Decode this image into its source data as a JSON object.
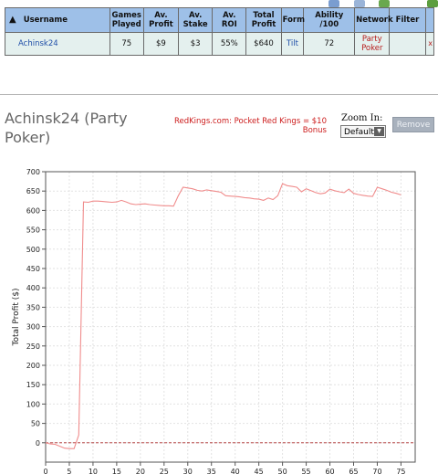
{
  "table": {
    "headers": [
      "Username",
      "Games Played",
      "Av. Profit",
      "Av. Stake",
      "Av. ROI",
      "Total Profit",
      "Form",
      "Ability /100",
      "Network",
      "Filter"
    ],
    "row": {
      "username": "Achinsk24",
      "games_played": "75",
      "av_profit": "$9",
      "av_stake": "$3",
      "av_roi": "55%",
      "total_profit": "$640",
      "form": "Tilt",
      "ability": "72",
      "network": "Party Poker",
      "remove": "x"
    }
  },
  "player": {
    "title": "Achinsk24 (Party Poker)"
  },
  "ad": {
    "text": "RedKings.com: Pocket Red Kings = $10 Bonus"
  },
  "zoom": {
    "label": "Zoom In:",
    "selected": "Default"
  },
  "remove_button": {
    "label": "Remove"
  },
  "icons": {
    "toolbar": [
      "print-icon",
      "save-icon",
      "refresh-icon",
      "expand-icon"
    ],
    "sort": "arrow-up-icon",
    "dropdown": "chevron-down-icon"
  },
  "colors": {
    "line": "#f08c8c",
    "header_bg": "#9ec0e8",
    "row_bg": "#e4f0ee",
    "accent_red": "#cc1b1b"
  },
  "chart_data": {
    "type": "line",
    "ylabel": "Total Profit ($)",
    "xlabel": "",
    "ylim": [
      -50,
      700
    ],
    "xlim": [
      0,
      78
    ],
    "yticks": [
      0,
      50,
      100,
      150,
      200,
      250,
      300,
      350,
      400,
      450,
      500,
      550,
      600,
      650,
      700
    ],
    "xticks": [
      0,
      5,
      10,
      15,
      20,
      25,
      30,
      35,
      40,
      45,
      50,
      55,
      60,
      65,
      70,
      75
    ],
    "grid": true,
    "zero_line": true,
    "series": [
      {
        "x": [
          0,
          1,
          2,
          3,
          4,
          5,
          6,
          7,
          8,
          9,
          10,
          11,
          12,
          13,
          14,
          15,
          16,
          17,
          18,
          19,
          20,
          21,
          22,
          23,
          24,
          25,
          26,
          27,
          28,
          29,
          30,
          31,
          32,
          33,
          34,
          35,
          36,
          37,
          38,
          39,
          40,
          41,
          42,
          43,
          44,
          45,
          46,
          47,
          48,
          49,
          50,
          51,
          52,
          53,
          54,
          55,
          56,
          57,
          58,
          59,
          60,
          61,
          62,
          63,
          64,
          65,
          66,
          67,
          68,
          69,
          70,
          71,
          72,
          73,
          74,
          75
        ],
        "y": [
          0,
          -3,
          -4,
          -9,
          -14,
          -15,
          -15,
          20,
          622,
          621,
          624,
          624,
          623,
          622,
          621,
          622,
          626,
          622,
          617,
          615,
          616,
          617,
          615,
          614,
          613,
          612,
          612,
          611,
          638,
          660,
          658,
          656,
          652,
          650,
          653,
          651,
          649,
          647,
          638,
          637,
          636,
          635,
          633,
          632,
          630,
          629,
          626,
          632,
          628,
          638,
          669,
          664,
          662,
          660,
          648,
          656,
          651,
          646,
          643,
          645,
          655,
          651,
          648,
          646,
          655,
          644,
          641,
          639,
          637,
          636,
          660,
          656,
          652,
          647,
          644,
          640
        ]
      }
    ]
  }
}
